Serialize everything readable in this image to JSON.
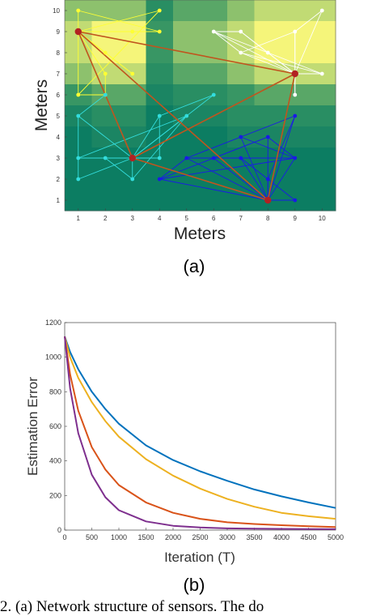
{
  "figure_a": {
    "panel_label": "(a)",
    "chart_data": {
      "type": "scatter",
      "xlabel": "Meters",
      "ylabel": "Meters",
      "xlim": [
        0.5,
        10.5
      ],
      "ylim": [
        0.5,
        10.5
      ],
      "xticks": [
        "1",
        "2",
        "3",
        "4",
        "5",
        "6",
        "7",
        "8",
        "9",
        "10"
      ],
      "yticks": [
        "1",
        "2",
        "3",
        "4",
        "5",
        "6",
        "7",
        "8",
        "9",
        "10"
      ],
      "heatmap_colors": {
        "low": "#0c7d62",
        "mid": "#3f9a64",
        "high": "#f5f57a"
      },
      "heatmap": [
        [
          5,
          5,
          5,
          2,
          4,
          4,
          5,
          6,
          6,
          6
        ],
        [
          6,
          7,
          7,
          3,
          5,
          5,
          6,
          7,
          7,
          7
        ],
        [
          6,
          7,
          7,
          3,
          5,
          5,
          6,
          7,
          7,
          7
        ],
        [
          5,
          6,
          6,
          2,
          4,
          4,
          5,
          6,
          6,
          6
        ],
        [
          3,
          4,
          4,
          1,
          2,
          2,
          3,
          4,
          4,
          4
        ],
        [
          1,
          2,
          2,
          0,
          1,
          1,
          2,
          2,
          2,
          2
        ],
        [
          0,
          1,
          1,
          0,
          0,
          0,
          1,
          1,
          1,
          1
        ],
        [
          0,
          0,
          0,
          0,
          0,
          0,
          0,
          0,
          0,
          0
        ],
        [
          0,
          0,
          0,
          0,
          0,
          0,
          0,
          0,
          0,
          0
        ],
        [
          0,
          0,
          0,
          0,
          0,
          0,
          0,
          0,
          0,
          0
        ]
      ],
      "hubs": [
        {
          "x": 1,
          "y": 9
        },
        {
          "x": 9,
          "y": 7
        },
        {
          "x": 3,
          "y": 3
        },
        {
          "x": 8,
          "y": 1
        }
      ],
      "hub_color": "#b22222",
      "hub_links": [
        [
          0,
          1
        ],
        [
          0,
          2
        ],
        [
          0,
          3
        ],
        [
          1,
          2
        ],
        [
          1,
          3
        ],
        [
          2,
          3
        ]
      ],
      "hub_link_color": "#c0551e",
      "clusters": [
        {
          "name": "yellow",
          "color": "#ffff33",
          "hub": 0,
          "points": [
            [
              1,
              10
            ],
            [
              4,
              10
            ],
            [
              2,
              8
            ],
            [
              3,
              9
            ],
            [
              4,
              9
            ],
            [
              1,
              6
            ],
            [
              2,
              6
            ],
            [
              2,
              7
            ],
            [
              3,
              7
            ]
          ],
          "links": [
            [
              0,
              4
            ],
            [
              1,
              5
            ],
            [
              3,
              4
            ],
            [
              6,
              7
            ],
            [
              2,
              8
            ],
            [
              5,
              6
            ]
          ]
        },
        {
          "name": "white",
          "color": "#ffffff",
          "hub": 1,
          "points": [
            [
              6,
              9
            ],
            [
              7,
              9
            ],
            [
              10,
              10
            ],
            [
              9,
              9
            ],
            [
              7,
              8
            ],
            [
              8,
              8
            ],
            [
              9,
              6
            ],
            [
              10,
              7
            ]
          ],
          "links": [
            [
              0,
              1
            ],
            [
              0,
              4
            ],
            [
              1,
              5
            ],
            [
              2,
              3
            ],
            [
              3,
              6
            ],
            [
              4,
              7
            ],
            [
              5,
              7
            ],
            [
              0,
              5
            ],
            [
              4,
              3
            ]
          ]
        },
        {
          "name": "cyan",
          "color": "#33dddd",
          "hub": 2,
          "points": [
            [
              1,
              5
            ],
            [
              1,
              3
            ],
            [
              1,
              2
            ],
            [
              2,
              3
            ],
            [
              3,
              2
            ],
            [
              4,
              3
            ],
            [
              4,
              5
            ],
            [
              5,
              5
            ],
            [
              6,
              6
            ],
            [
              2,
              6
            ]
          ],
          "links": [
            [
              0,
              2
            ],
            [
              1,
              3
            ],
            [
              3,
              4
            ],
            [
              4,
              7
            ],
            [
              5,
              6
            ],
            [
              6,
              8
            ],
            [
              0,
              9
            ],
            [
              7,
              1
            ]
          ]
        },
        {
          "name": "blue",
          "color": "#1a1ae6",
          "hub": 3,
          "points": [
            [
              4,
              2
            ],
            [
              5,
              3
            ],
            [
              7,
              4
            ],
            [
              7,
              3
            ],
            [
              8,
              4
            ],
            [
              9,
              5
            ],
            [
              9,
              3
            ],
            [
              8,
              2
            ],
            [
              9,
              1
            ],
            [
              6,
              3
            ]
          ],
          "links": [
            [
              0,
              1
            ],
            [
              0,
              4
            ],
            [
              0,
              6
            ],
            [
              1,
              5
            ],
            [
              2,
              6
            ],
            [
              3,
              8
            ],
            [
              4,
              6
            ],
            [
              5,
              7
            ],
            [
              9,
              4
            ],
            [
              1,
              6
            ]
          ]
        }
      ]
    }
  },
  "figure_b": {
    "panel_label": "(b)",
    "chart_data": {
      "type": "line",
      "xlabel": "Iteration (T)",
      "ylabel": "Estimation Error",
      "xlim": [
        0,
        5000
      ],
      "ylim": [
        0,
        1200
      ],
      "xticks": [
        0,
        500,
        1000,
        1500,
        2000,
        2500,
        3000,
        3500,
        4000,
        4500,
        5000
      ],
      "yticks": [
        0,
        200,
        400,
        600,
        800,
        1000,
        1200
      ],
      "x": [
        0,
        100,
        250,
        500,
        750,
        1000,
        1500,
        2000,
        2500,
        3000,
        3500,
        4000,
        4500,
        5000
      ],
      "series": [
        {
          "color": "#0072bd",
          "values": [
            1120,
            1030,
            930,
            800,
            700,
            615,
            490,
            405,
            340,
            285,
            235,
            195,
            160,
            128
          ]
        },
        {
          "color": "#edb120",
          "values": [
            1120,
            1000,
            880,
            740,
            630,
            540,
            410,
            315,
            240,
            180,
            135,
            100,
            80,
            65
          ]
        },
        {
          "color": "#d95319",
          "values": [
            1120,
            900,
            690,
            480,
            350,
            260,
            160,
            100,
            65,
            45,
            35,
            28,
            22,
            18
          ]
        },
        {
          "color": "#7e2f8e",
          "values": [
            1120,
            820,
            560,
            320,
            190,
            115,
            50,
            25,
            15,
            10,
            8,
            7,
            6,
            5
          ]
        }
      ]
    }
  },
  "caption": {
    "text": "2. (a) Network structure of sensors. The do"
  }
}
